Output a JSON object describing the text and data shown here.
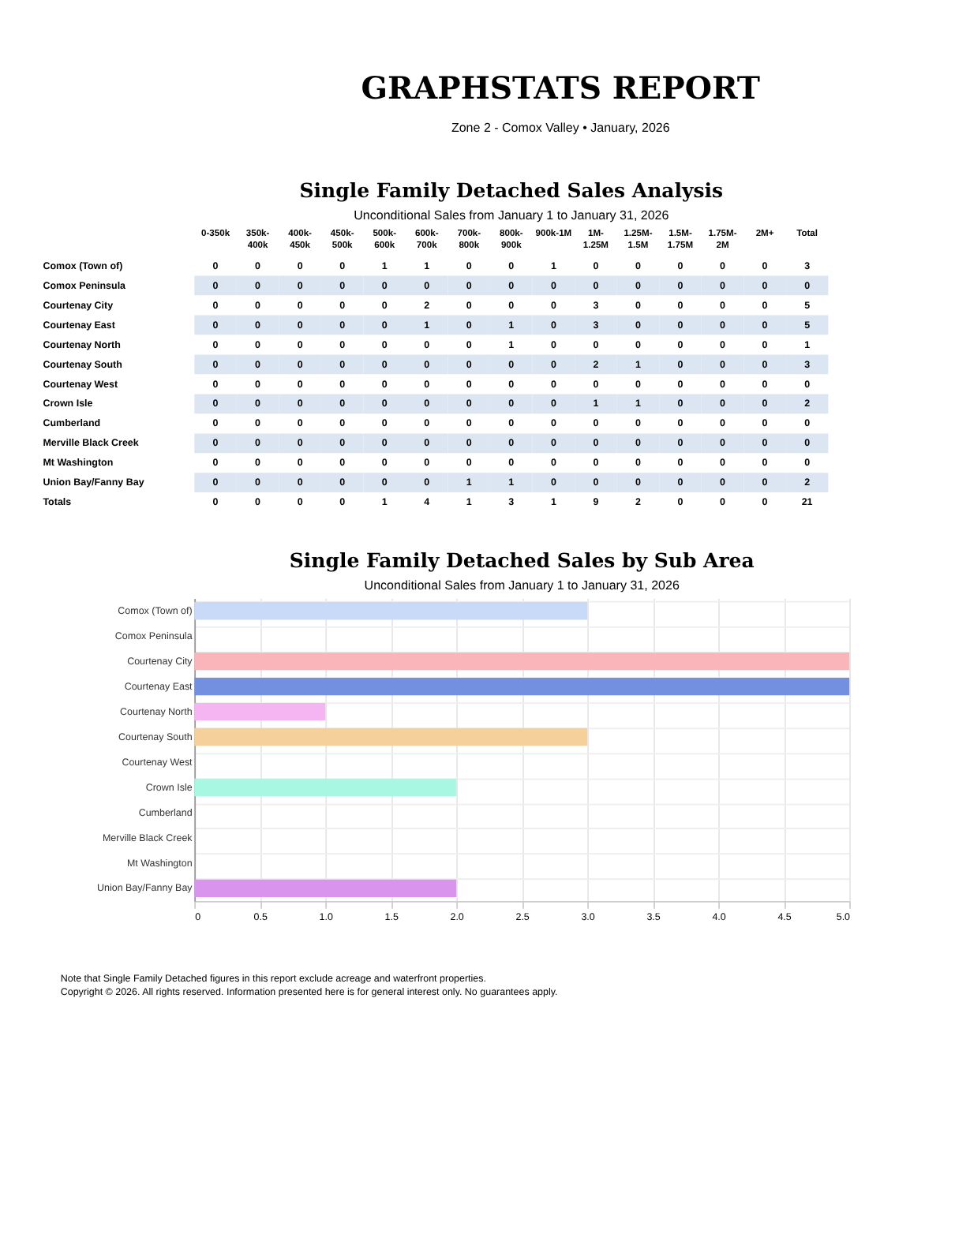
{
  "chart_data": [
    {
      "type": "other",
      "title": "GRAPHSTATS REPORT",
      "subtitle": "Zone 2 - Comox Valley • January, 2026"
    },
    {
      "type": "heatmap",
      "title": "Single Family Detached Sales Analysis",
      "subtitle": "Unconditional Sales from January 1 to January 31, 2026",
      "data_labels": true,
      "categories": [
        "0-350k",
        "350k-400k",
        "400k-450k",
        "450k-500k",
        "500k-600k",
        "600k-700k",
        "700k-800k",
        "800k-900k",
        "900k-1M",
        "1M-1.25M",
        "1.25M-1.5M",
        "1.5M-1.75M",
        "1.75M-2M",
        "2M+",
        "Total"
      ],
      "y_categories": [
        "Comox (Town of)",
        "Comox Peninsula",
        "Courtenay City",
        "Courtenay East",
        "Courtenay North",
        "Courtenay South",
        "Courtenay West",
        "Crown Isle",
        "Cumberland",
        "Merville Black Creek",
        "Mt Washington",
        "Union Bay/Fanny Bay",
        "Totals"
      ],
      "cells": [
        [
          0,
          0,
          0,
          0,
          1,
          1,
          0,
          0,
          1,
          0,
          0,
          0,
          0,
          0,
          3
        ],
        [
          0,
          0,
          0,
          0,
          0,
          0,
          0,
          0,
          0,
          0,
          0,
          0,
          0,
          0,
          0
        ],
        [
          0,
          0,
          0,
          0,
          0,
          2,
          0,
          0,
          0,
          3,
          0,
          0,
          0,
          0,
          5
        ],
        [
          0,
          0,
          0,
          0,
          0,
          1,
          0,
          1,
          0,
          3,
          0,
          0,
          0,
          0,
          5
        ],
        [
          0,
          0,
          0,
          0,
          0,
          0,
          0,
          1,
          0,
          0,
          0,
          0,
          0,
          0,
          1
        ],
        [
          0,
          0,
          0,
          0,
          0,
          0,
          0,
          0,
          0,
          2,
          1,
          0,
          0,
          0,
          3
        ],
        [
          0,
          0,
          0,
          0,
          0,
          0,
          0,
          0,
          0,
          0,
          0,
          0,
          0,
          0,
          0
        ],
        [
          0,
          0,
          0,
          0,
          0,
          0,
          0,
          0,
          0,
          1,
          1,
          0,
          0,
          0,
          2
        ],
        [
          0,
          0,
          0,
          0,
          0,
          0,
          0,
          0,
          0,
          0,
          0,
          0,
          0,
          0,
          0
        ],
        [
          0,
          0,
          0,
          0,
          0,
          0,
          0,
          0,
          0,
          0,
          0,
          0,
          0,
          0,
          0
        ],
        [
          0,
          0,
          0,
          0,
          0,
          0,
          0,
          0,
          0,
          0,
          0,
          0,
          0,
          0,
          0
        ],
        [
          0,
          0,
          0,
          0,
          0,
          0,
          1,
          1,
          0,
          0,
          0,
          0,
          0,
          0,
          2
        ],
        [
          0,
          0,
          0,
          0,
          1,
          4,
          1,
          3,
          1,
          9,
          2,
          0,
          0,
          0,
          21
        ]
      ]
    },
    {
      "type": "bar",
      "orientation": "horizontal",
      "title": "Single Family Detached Sales by Sub Area",
      "subtitle": "Unconditional Sales from January 1 to January 31, 2026",
      "categories": [
        "Comox (Town of)",
        "Comox Peninsula",
        "Courtenay City",
        "Courtenay East",
        "Courtenay North",
        "Courtenay South",
        "Courtenay West",
        "Crown Isle",
        "Cumberland",
        "Merville Black Creek",
        "Mt Washington",
        "Union Bay/Fanny Bay"
      ],
      "values": [
        3,
        0,
        5,
        5,
        1,
        3,
        0,
        2,
        0,
        0,
        0,
        2
      ],
      "colors": [
        "#c9daf8",
        null,
        "#f9b5b9",
        "#7390e0",
        "#f5b5f2",
        "#f6d09a",
        null,
        "#a8f7e3",
        null,
        null,
        null,
        "#d994ee"
      ],
      "xlim": [
        0,
        5
      ],
      "xticks": [
        0,
        {
          "value": 0.5,
          "label": "0.5"
        },
        {
          "value": 1,
          "label": "1.0"
        },
        {
          "value": 1.5,
          "label": "1.5"
        },
        {
          "value": 2,
          "label": "2.0"
        },
        {
          "value": 2.5,
          "label": "2.5"
        },
        {
          "value": 3,
          "label": "3.0"
        },
        {
          "value": 3.5,
          "label": "3.5"
        },
        {
          "value": 4,
          "label": "4.0"
        },
        {
          "value": 4.5,
          "label": "4.5"
        },
        {
          "value": 5,
          "label": "5.0"
        }
      ],
      "grid": true,
      "annotations": [
        "Note that Single Family Detached figures in this report exclude acreage and waterfront properties.",
        "Copyright © 2026. All rights reserved. Information presented here is for general interest only. No guarantees apply."
      ]
    }
  ]
}
